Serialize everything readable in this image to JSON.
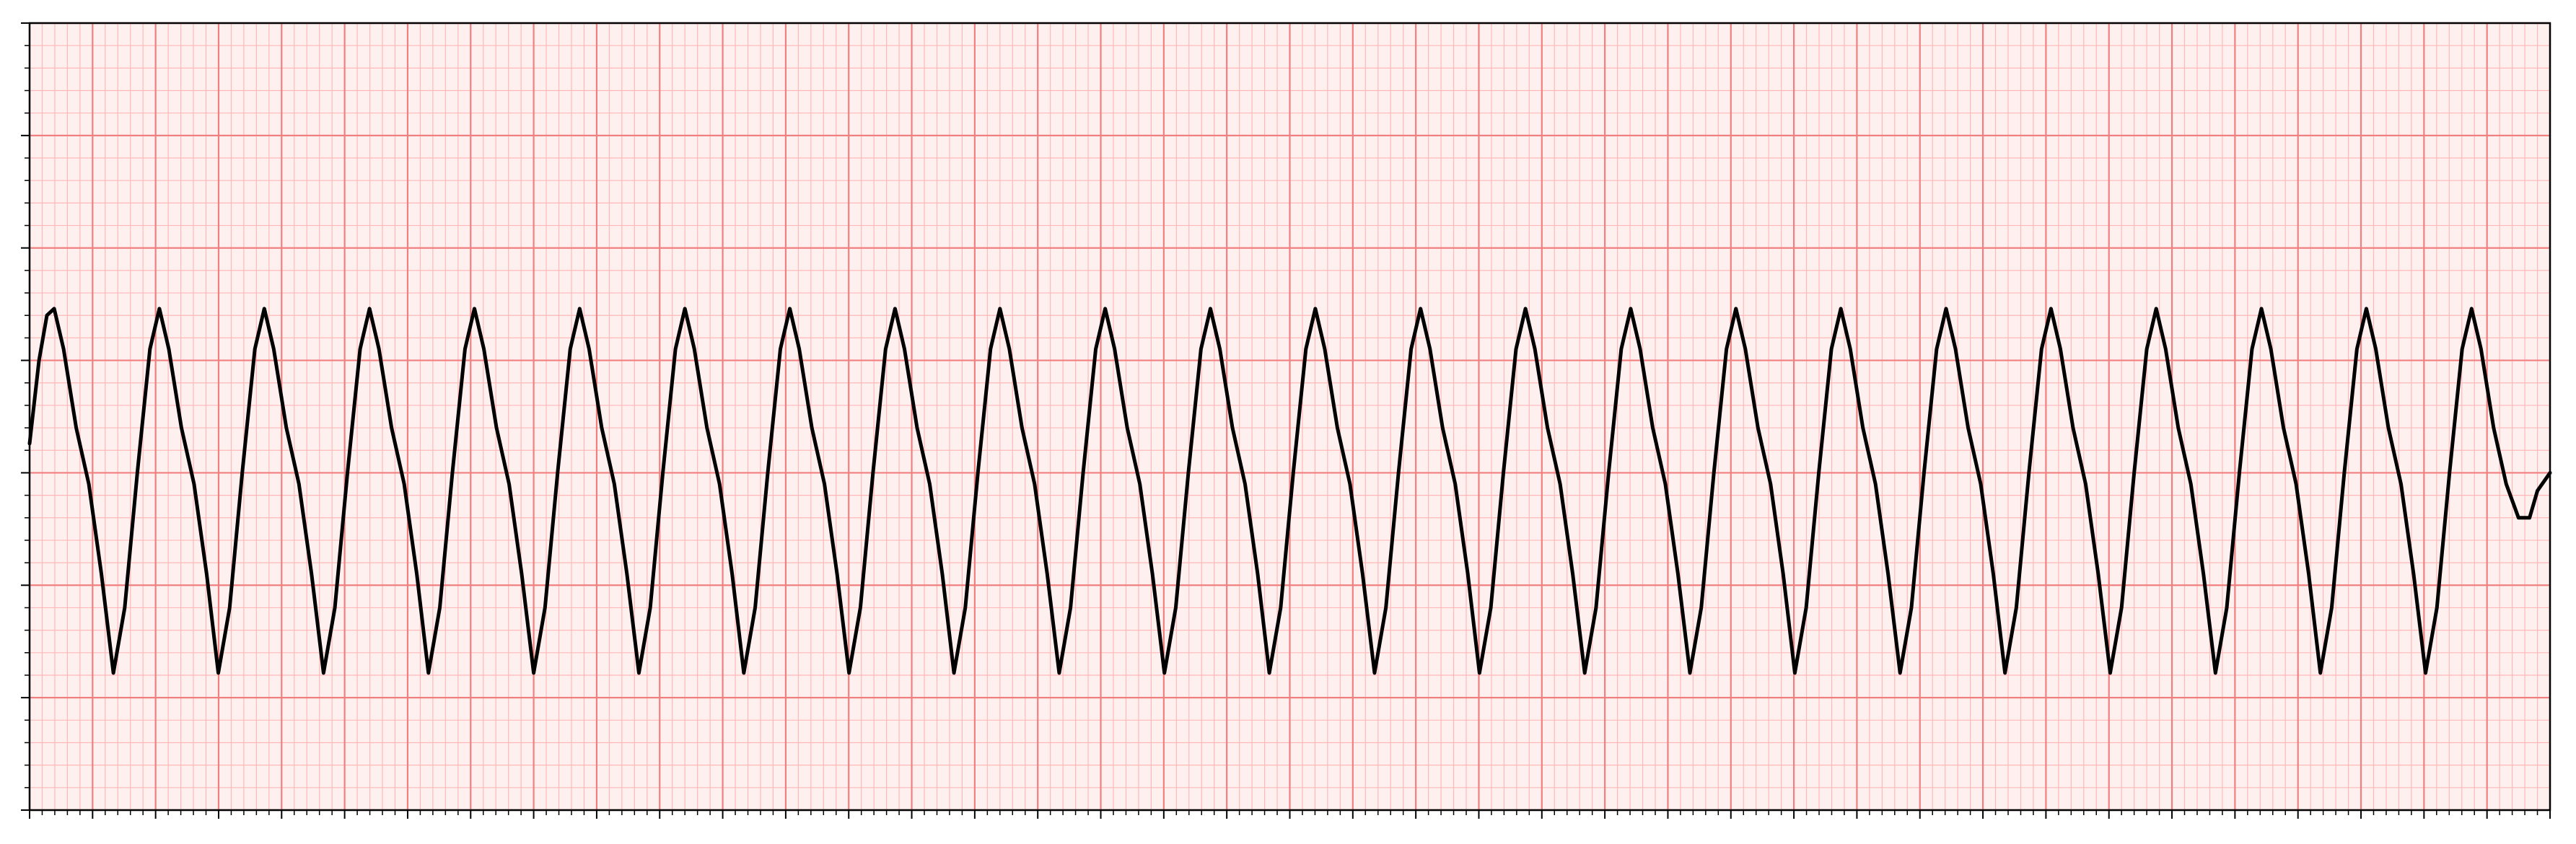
{
  "chart_data": {
    "type": "line",
    "x": [
      0,
      0.03,
      0.055,
      0.078,
      0.108,
      0.148,
      0.188,
      0.228,
      0.266,
      0.302,
      0.342,
      0.382,
      0.412,
      0.442,
      0.482,
      0.522,
      0.562,
      0.599,
      0.635,
      0.675,
      0.715,
      0.745,
      0.775,
      0.815,
      0.855,
      0.895,
      0.933,
      0.969,
      1.009,
      1.049,
      1.079,
      1.109,
      1.149,
      1.189,
      1.229,
      1.266,
      1.302,
      1.342,
      1.382,
      1.412,
      1.442,
      1.482,
      1.522,
      1.562,
      1.6,
      1.636,
      1.676,
      1.716,
      1.746,
      1.776,
      1.816,
      1.856,
      1.896,
      1.934,
      1.97,
      2.01,
      2.05,
      2.08,
      2.11,
      2.15,
      2.19,
      2.23,
      2.267,
      2.303,
      2.343,
      2.383,
      2.413,
      2.443,
      2.483,
      2.523,
      2.563,
      2.601,
      2.637,
      2.677,
      2.717,
      2.747,
      2.777,
      2.817,
      2.857,
      2.897,
      2.934,
      2.97,
      3.01,
      3.05,
      3.08,
      3.11,
      3.15,
      3.19,
      3.23,
      3.268,
      3.304,
      3.344,
      3.384,
      3.414,
      3.444,
      3.484,
      3.524,
      3.564,
      3.602,
      3.638,
      3.678,
      3.718,
      3.748,
      3.778,
      3.818,
      3.858,
      3.898,
      3.935,
      3.971,
      4.011,
      4.051,
      4.081,
      4.111,
      4.151,
      4.191,
      4.231,
      4.269,
      4.305,
      4.345,
      4.385,
      4.415,
      4.445,
      4.485,
      4.525,
      4.565,
      4.602,
      4.638,
      4.678,
      4.718,
      4.748,
      4.778,
      4.818,
      4.858,
      4.898,
      4.936,
      4.972,
      5.012,
      5.052,
      5.082,
      5.112,
      5.152,
      5.192,
      5.232,
      5.27,
      5.306,
      5.346,
      5.386,
      5.416,
      5.446,
      5.486,
      5.526,
      5.566,
      5.603,
      5.639,
      5.679,
      5.719,
      5.749,
      5.779,
      5.819,
      5.859,
      5.899,
      5.937,
      5.973,
      6.013,
      6.053,
      6.083,
      6.113,
      6.153,
      6.193,
      6.233,
      6.27,
      6.306,
      6.346,
      6.386,
      6.416,
      6.446,
      6.486,
      6.526,
      6.566,
      6.604,
      6.64,
      6.68,
      6.72,
      6.75,
      6.78,
      6.82,
      6.86,
      6.9,
      6.938,
      6.974,
      7.014,
      7.054,
      7.084,
      7.114,
      7.154,
      7.194,
      7.234,
      7.271,
      7.307,
      7.347,
      7.387,
      7.417,
      7.447,
      7.487,
      7.527,
      7.567,
      7.605,
      7.641,
      7.681,
      7.721,
      7.751,
      7.781,
      7.821,
      7.861,
      7.9,
      7.935,
      7.96,
      8.0
    ],
    "values": [
      0.13,
      0.5,
      0.7,
      0.73,
      0.55,
      0.2,
      -0.05,
      -0.45,
      -0.89,
      -0.6,
      0,
      0.55,
      0.73,
      0.55,
      0.2,
      -0.05,
      -0.45,
      -0.89,
      -0.6,
      0,
      0.55,
      0.73,
      0.55,
      0.2,
      -0.05,
      -0.45,
      -0.89,
      -0.6,
      0,
      0.55,
      0.73,
      0.55,
      0.2,
      -0.05,
      -0.45,
      -0.89,
      -0.6,
      0,
      0.55,
      0.73,
      0.55,
      0.2,
      -0.05,
      -0.45,
      -0.89,
      -0.6,
      0,
      0.55,
      0.73,
      0.55,
      0.2,
      -0.05,
      -0.45,
      -0.89,
      -0.6,
      0,
      0.55,
      0.73,
      0.55,
      0.2,
      -0.05,
      -0.45,
      -0.89,
      -0.6,
      0,
      0.55,
      0.73,
      0.55,
      0.2,
      -0.05,
      -0.45,
      -0.89,
      -0.6,
      0,
      0.55,
      0.73,
      0.55,
      0.2,
      -0.05,
      -0.45,
      -0.89,
      -0.6,
      0,
      0.55,
      0.73,
      0.55,
      0.2,
      -0.05,
      -0.45,
      -0.89,
      -0.6,
      0,
      0.55,
      0.73,
      0.55,
      0.2,
      -0.05,
      -0.45,
      -0.89,
      -0.6,
      0,
      0.55,
      0.73,
      0.55,
      0.2,
      -0.05,
      -0.45,
      -0.89,
      -0.6,
      0,
      0.55,
      0.73,
      0.55,
      0.2,
      -0.05,
      -0.45,
      -0.89,
      -0.6,
      0,
      0.55,
      0.73,
      0.55,
      0.2,
      -0.05,
      -0.45,
      -0.89,
      -0.6,
      0,
      0.55,
      0.73,
      0.55,
      0.2,
      -0.05,
      -0.45,
      -0.89,
      -0.6,
      0,
      0.55,
      0.73,
      0.55,
      0.2,
      -0.05,
      -0.45,
      -0.89,
      -0.6,
      0,
      0.55,
      0.73,
      0.55,
      0.2,
      -0.05,
      -0.45,
      -0.89,
      -0.6,
      0,
      0.55,
      0.73,
      0.55,
      0.2,
      -0.05,
      -0.45,
      -0.89,
      -0.6,
      0,
      0.55,
      0.73,
      0.55,
      0.2,
      -0.05,
      -0.45,
      -0.89,
      -0.6,
      0,
      0.55,
      0.73,
      0.55,
      0.2,
      -0.05,
      -0.45,
      -0.89,
      -0.6,
      0,
      0.55,
      0.73,
      0.55,
      0.2,
      -0.05,
      -0.45,
      -0.89,
      -0.6,
      0,
      0.55,
      0.73,
      0.55,
      0.2,
      -0.05,
      -0.45,
      -0.89,
      -0.6,
      0,
      0.55,
      0.73,
      0.55,
      0.2,
      -0.05,
      -0.45,
      -0.89,
      -0.6,
      0,
      0.55,
      0.73,
      0.55,
      0.2,
      -0.05,
      -0.2,
      -0.2,
      -0.08,
      0
    ],
    "color": "#000000",
    "xlim": [
      0,
      8
    ],
    "xticks": [
      0,
      0.2,
      0.4,
      0.6,
      0.8,
      1,
      1.2,
      1.4,
      1.6,
      1.8,
      2,
      2.2,
      2.4,
      2.6,
      2.8,
      3,
      3.2,
      3.4,
      3.6,
      3.8,
      4,
      4.2,
      4.4,
      4.6,
      4.8,
      5,
      5.2,
      5.4,
      5.6,
      5.8,
      6,
      6.2,
      6.4,
      6.6,
      6.8,
      7,
      7.2,
      7.4,
      7.6,
      7.8,
      8
    ],
    "ylim": [
      -1.5,
      2
    ],
    "yticks": [
      -1.5,
      -1,
      -0.5,
      0,
      0.5,
      1,
      1.5,
      2
    ],
    "grid": true
  }
}
